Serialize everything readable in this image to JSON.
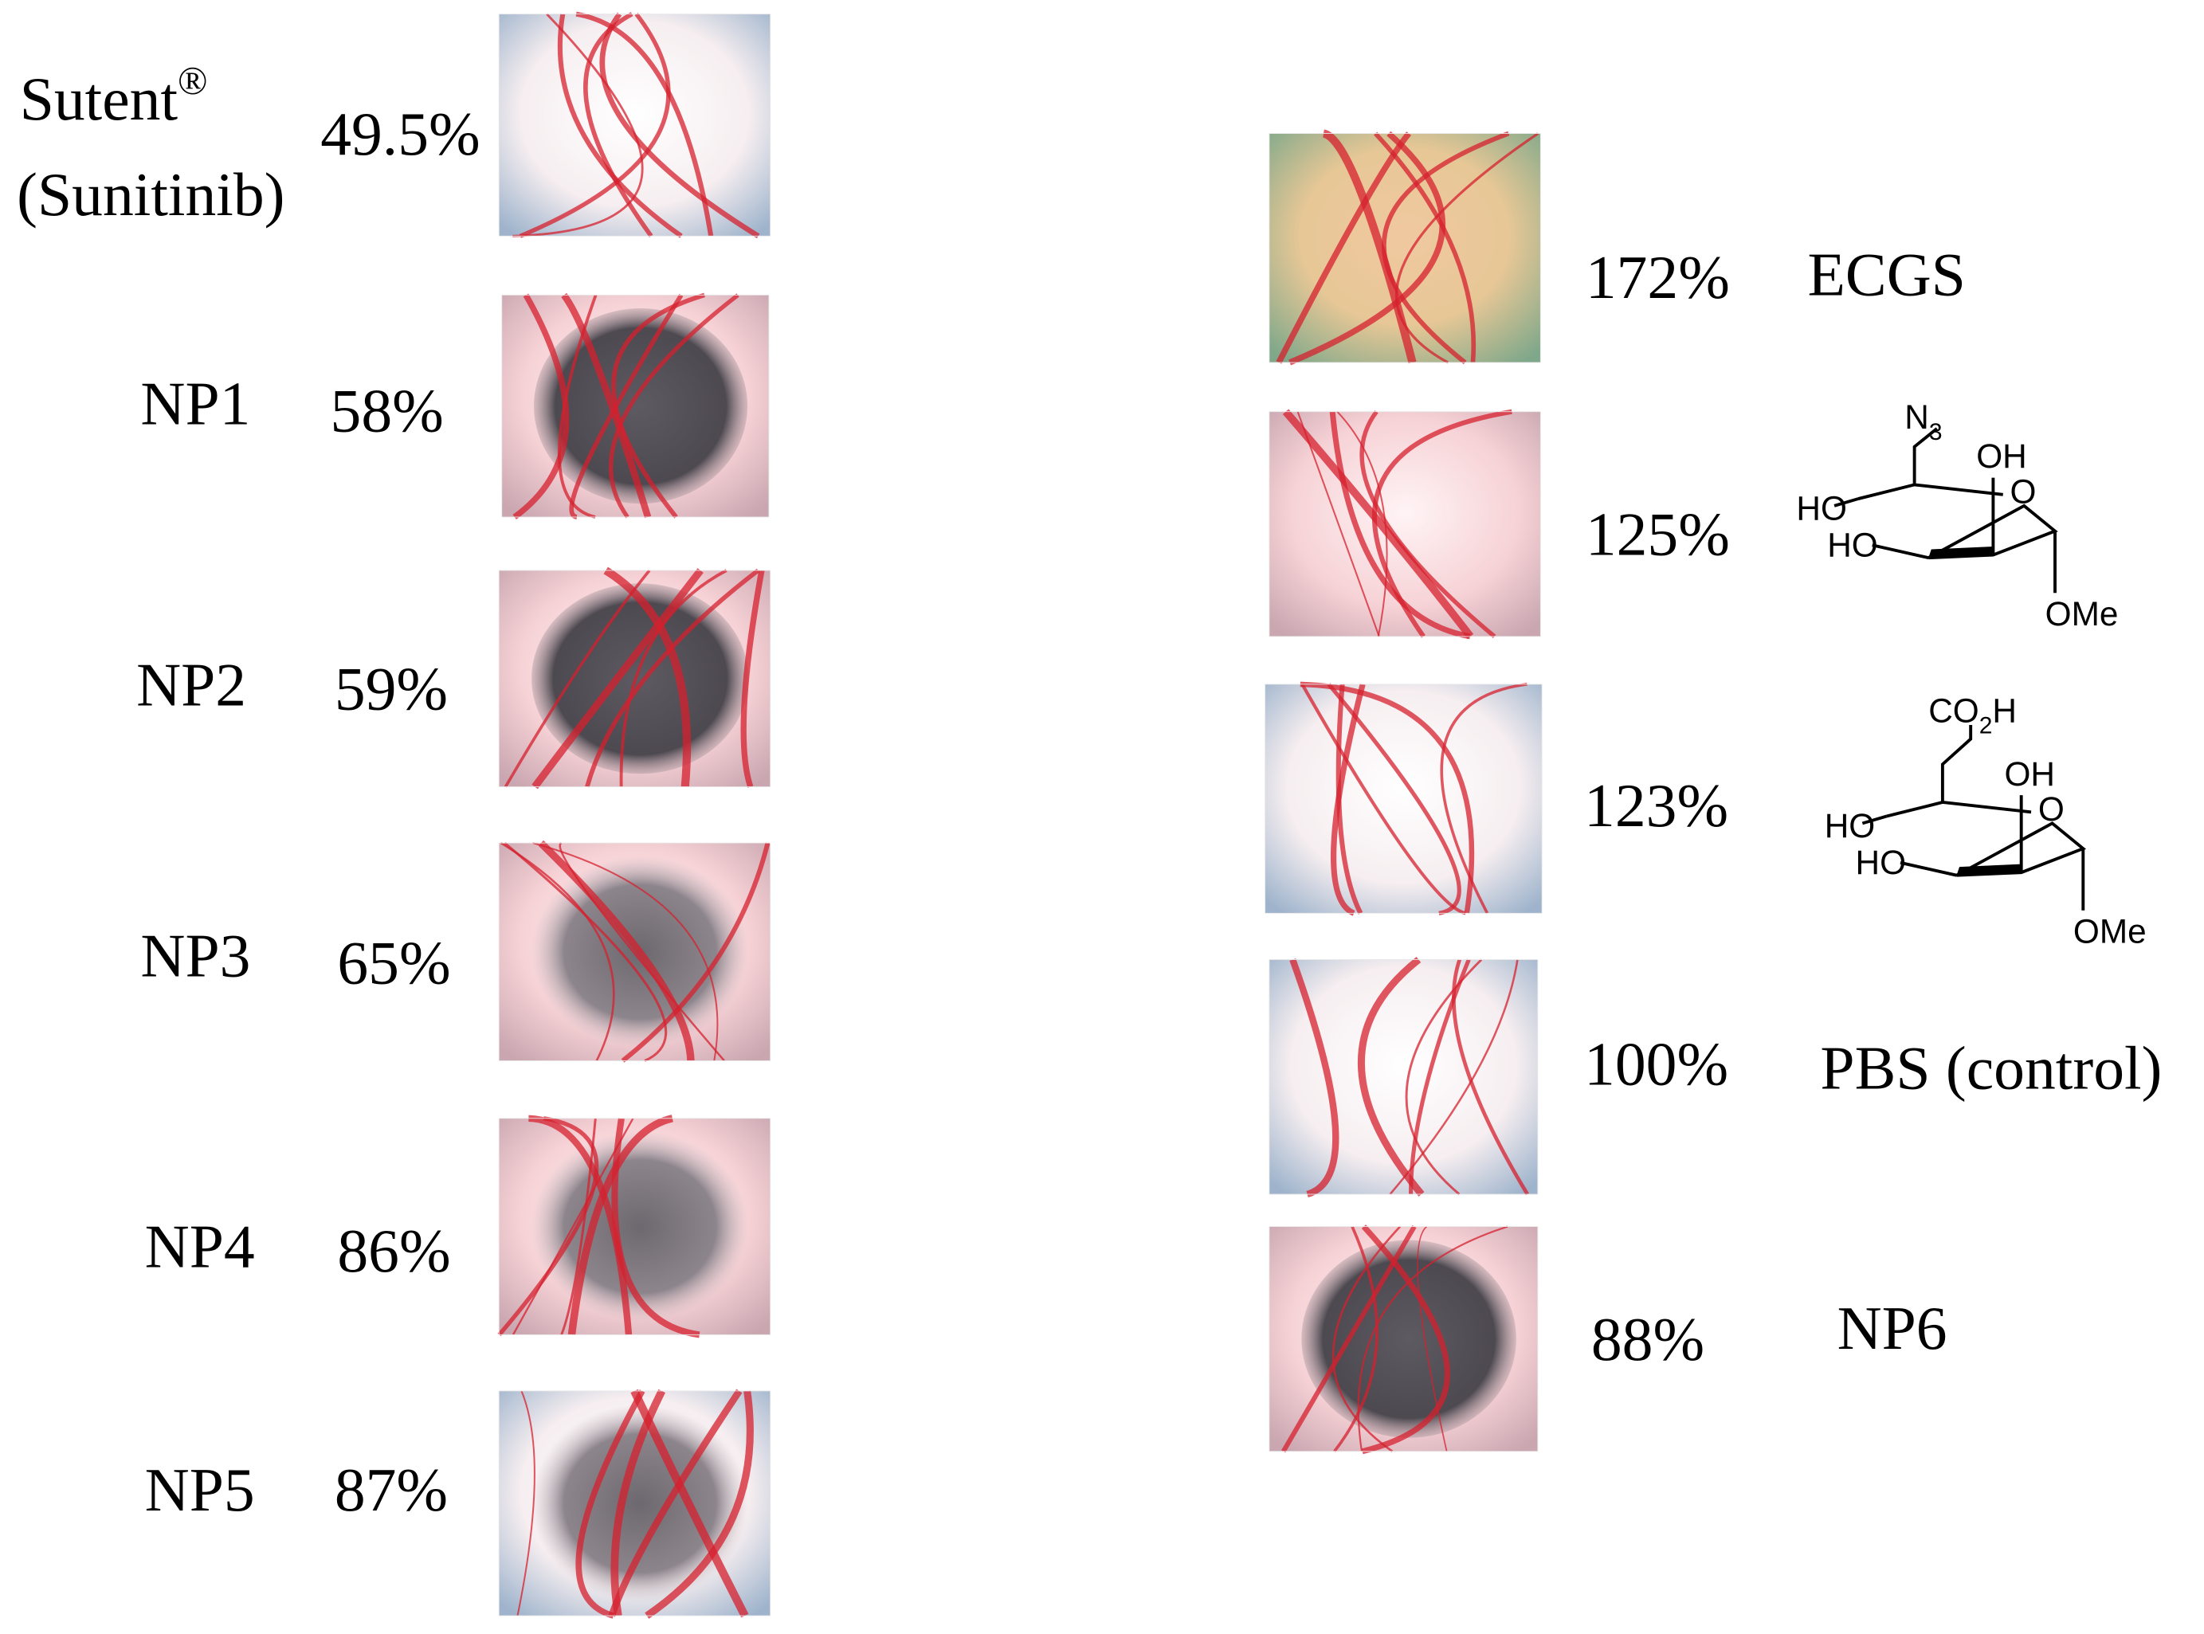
{
  "left": [
    {
      "label": "Sutent",
      "superscript": "®",
      "label_line2": "(Sunitinib)",
      "value": "49.5%"
    },
    {
      "label": "NP1",
      "value": "58%"
    },
    {
      "label": "NP2",
      "value": "59%"
    },
    {
      "label": "NP3",
      "value": "65%"
    },
    {
      "label": "NP4",
      "value": "86%"
    },
    {
      "label": "NP5",
      "value": "87%"
    }
  ],
  "right": [
    {
      "value": "172%",
      "label": "ECGS"
    },
    {
      "value": "125%",
      "structure": {
        "top": "N",
        "top_sub": "3",
        "top_end": "",
        "oh": "OH",
        "ring_o": "O",
        "ho1": "HO",
        "ho2": "HO",
        "ome": "OMe"
      }
    },
    {
      "value": "123%",
      "structure": {
        "top": "CO",
        "top_sub": "2",
        "top_end": "H",
        "oh": "OH",
        "ring_o": "O",
        "ho1": "HO",
        "ho2": "HO",
        "ome": "OMe"
      }
    },
    {
      "value": "100%",
      "label": "PBS (control)"
    },
    {
      "value": "88%",
      "label": "NP6"
    }
  ]
}
